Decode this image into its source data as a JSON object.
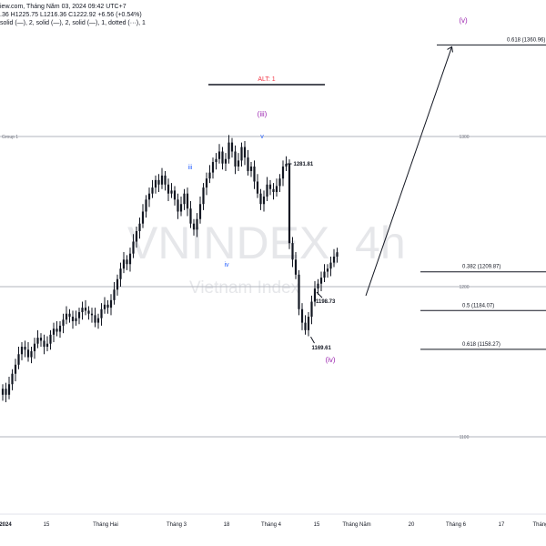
{
  "header": {
    "line1": "iew.com, Tháng Năm 03, 2024 09:42 UTC+7",
    "line2": ".36  H1225.75  L1216.36  C1222.92  +6.56 (+0.54%)",
    "line3": "solid (—), 2, solid (—), 2, solid (—), 1, dotted (···), 1"
  },
  "watermark": {
    "symbol": "VNINDEX, 4h",
    "name": "Vietnam Index"
  },
  "colors": {
    "candle": "#131722",
    "wave_label_blue": "#2962ff",
    "wave_label_purple": "#9c27b0",
    "alt_label": "#f23645",
    "gridline": "#b2b5be",
    "axis_text": "#787b86"
  },
  "chart_data": {
    "type": "candlestick",
    "ylim": [
      1055,
      1435
    ],
    "horizontal_lines": [
      {
        "value": 1300,
        "label": "1300",
        "left_label": "Group 1"
      },
      {
        "value": 1200,
        "label": "1200",
        "left_label": ""
      },
      {
        "value": 1100,
        "label": "1100",
        "left_label": ""
      }
    ],
    "x_ticks": [
      "2024",
      "15",
      "Tháng Hai",
      "Tháng 3",
      "18",
      "Tháng 4",
      "15",
      "Tháng Năm",
      "20",
      "Tháng 6",
      "17",
      "Tháng"
    ],
    "fib_levels": [
      {
        "label": "0.618 (1360.96)",
        "value": 1360.96
      },
      {
        "label": "0.382 (1209.87)",
        "value": 1209.87
      },
      {
        "label": "0.5 (1184.07)",
        "value": 1184.07
      },
      {
        "label": "0.618 (1158.27)",
        "value": 1158.27
      }
    ],
    "price_labels": [
      {
        "label": "1281.81",
        "value": 1281.81
      },
      {
        "label": "1198.73",
        "value": 1198.73
      },
      {
        "label": "1169.61",
        "value": 1169.61
      }
    ],
    "wave_labels": [
      {
        "label": "iii",
        "color": "blue"
      },
      {
        "label": "iv",
        "color": "blue"
      },
      {
        "label": "v",
        "color": "blue"
      },
      {
        "label": "(iii)",
        "color": "purple"
      },
      {
        "label": "(iv)",
        "color": "purple"
      },
      {
        "label": "(v)",
        "color": "purple"
      }
    ],
    "alt_label": "ALT: 1",
    "closes": [
      1132,
      1128,
      1135,
      1142,
      1148,
      1155,
      1160,
      1158,
      1153,
      1157,
      1162,
      1166,
      1164,
      1160,
      1162,
      1168,
      1172,
      1170,
      1174,
      1178,
      1182,
      1180,
      1177,
      1179,
      1183,
      1186,
      1184,
      1182,
      1181,
      1176,
      1179,
      1185,
      1188,
      1186,
      1191,
      1198,
      1205,
      1212,
      1218,
      1215,
      1222,
      1230,
      1237,
      1242,
      1250,
      1258,
      1262,
      1266,
      1271,
      1268,
      1274,
      1268,
      1262,
      1264,
      1258,
      1250,
      1255,
      1262,
      1252,
      1242,
      1238,
      1245,
      1255,
      1266,
      1272,
      1276,
      1283,
      1285,
      1290,
      1282,
      1285,
      1296,
      1290,
      1280,
      1284,
      1293,
      1286,
      1277,
      1280,
      1270,
      1262,
      1255,
      1260,
      1268,
      1265,
      1263,
      1267,
      1272,
      1280,
      1281.81,
      1229,
      1218,
      1208,
      1185,
      1176,
      1171,
      1180,
      1190,
      1198.73,
      1202,
      1206,
      1210,
      1212,
      1216,
      1220,
      1222.92
    ],
    "forecast_path": [
      {
        "time_index": 114,
        "value": 1194
      },
      {
        "time_index": 141,
        "value": 1360.96
      }
    ]
  }
}
